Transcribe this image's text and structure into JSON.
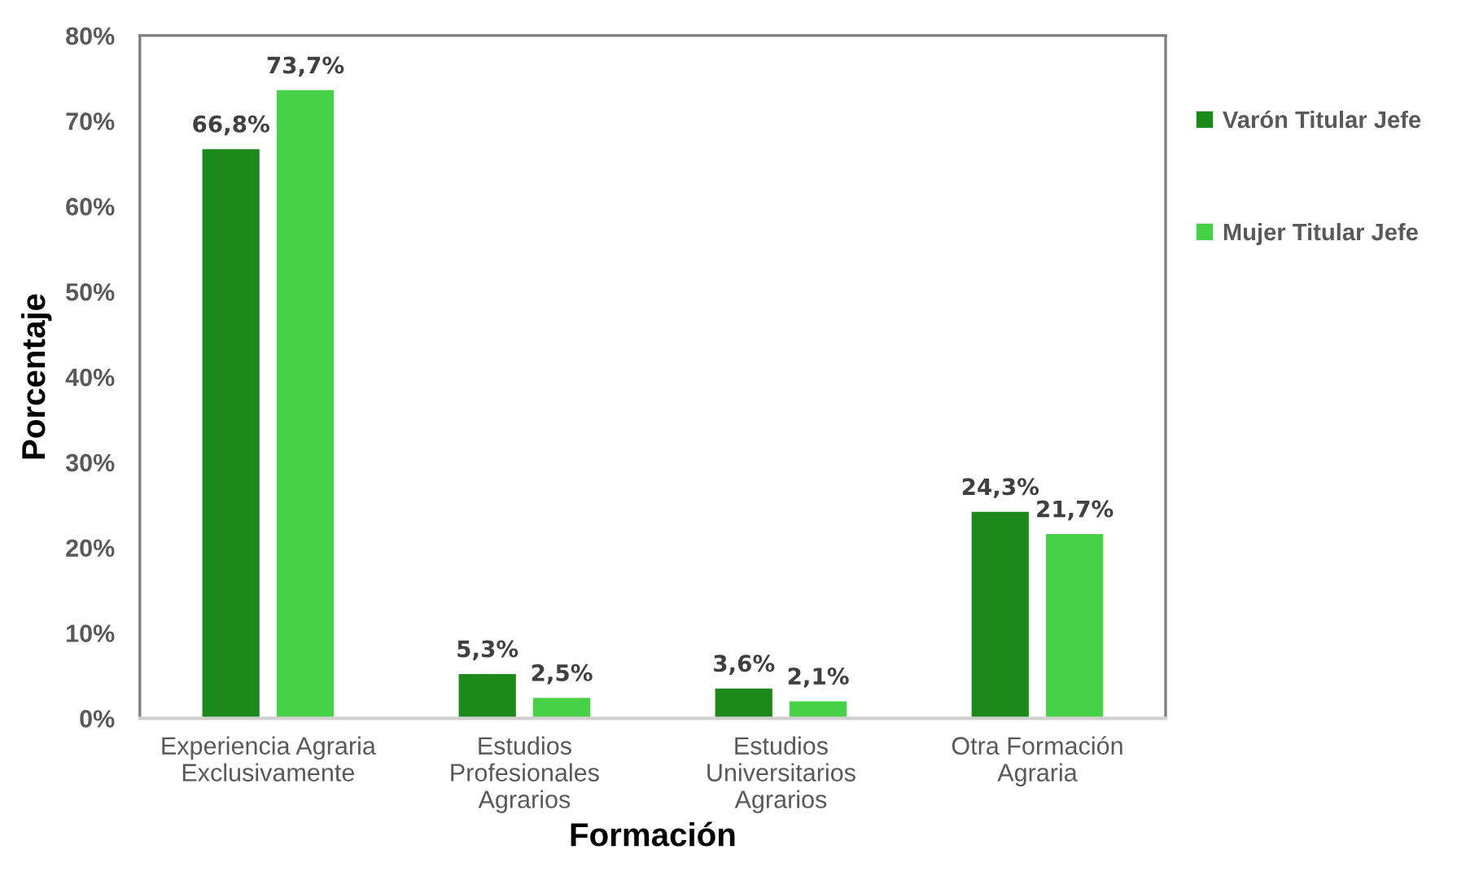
{
  "chart_data": {
    "type": "bar",
    "xlabel": "Formación",
    "ylabel": "Porcentaje",
    "categories": [
      "Experiencia Agraria\nExclusivamente",
      "Estudios\nProfesionales\nAgrarios",
      "Estudios\nUniversitarios\nAgrarios",
      "Otra Formación\nAgraria"
    ],
    "series": [
      {
        "name": "Varón Titular Jefe",
        "color": "#1b8a1b",
        "values": [
          66.8,
          5.3,
          3.6,
          24.3
        ],
        "value_labels": [
          "66,8%",
          "5,3%",
          "3,6%",
          "24,3%"
        ]
      },
      {
        "name": "Mujer Titular Jefe",
        "color": "#47d147",
        "values": [
          73.7,
          2.5,
          2.1,
          21.7
        ],
        "value_labels": [
          "73,7%",
          "2,5%",
          "2,1%",
          "21,7%"
        ]
      }
    ],
    "ylim": [
      0,
      80
    ],
    "yticks": [
      {
        "value": 0,
        "label": "0%"
      },
      {
        "value": 10,
        "label": "10%"
      },
      {
        "value": 20,
        "label": "20%"
      },
      {
        "value": 30,
        "label": "30%"
      },
      {
        "value": 40,
        "label": "40%"
      },
      {
        "value": 50,
        "label": "50%"
      },
      {
        "value": 60,
        "label": "60%"
      },
      {
        "value": 70,
        "label": "70%"
      },
      {
        "value": 80,
        "label": "80%"
      }
    ],
    "grid": false,
    "legend": "right"
  }
}
